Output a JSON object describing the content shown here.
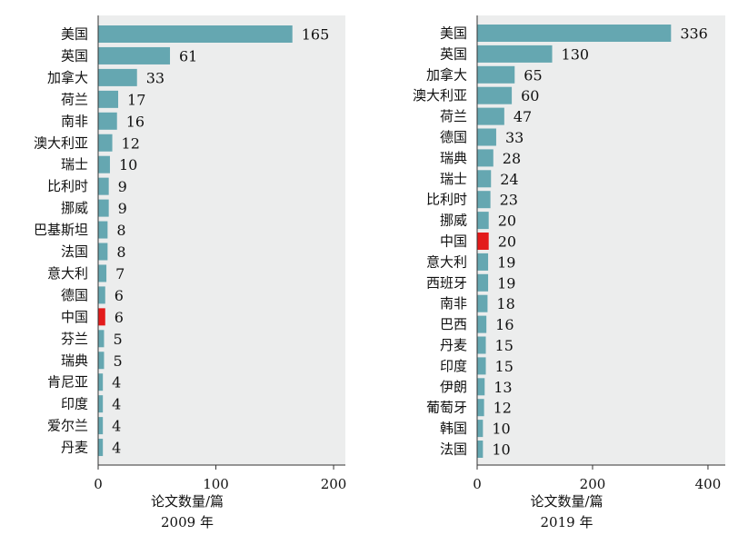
{
  "chart_data": [
    {
      "type": "bar",
      "orientation": "horizontal",
      "categories": [
        "美国",
        "英国",
        "加拿大",
        "荷兰",
        "南非",
        "澳大利亚",
        "瑞士",
        "比利时",
        "挪威",
        "巴基斯坦",
        "法国",
        "意大利",
        "德国",
        "中国",
        "芬兰",
        "瑞典",
        "肯尼亚",
        "印度",
        "爱尔兰",
        "丹麦"
      ],
      "values": [
        165,
        61,
        33,
        17,
        16,
        12,
        10,
        9,
        9,
        8,
        8,
        7,
        6,
        6,
        5,
        5,
        4,
        4,
        4,
        4
      ],
      "highlight": "中国",
      "xlabel": "论文数量/篇",
      "caption": "2009 年",
      "xlim": [
        0,
        210
      ],
      "xticks": [
        0,
        100,
        200
      ],
      "grid": false
    },
    {
      "type": "bar",
      "orientation": "horizontal",
      "categories": [
        "美国",
        "英国",
        "加拿大",
        "澳大利亚",
        "荷兰",
        "德国",
        "瑞典",
        "瑞士",
        "比利时",
        "挪威",
        "中国",
        "意大利",
        "西班牙",
        "南非",
        "巴西",
        "丹麦",
        "印度",
        "伊朗",
        "葡萄牙",
        "韩国",
        "法国"
      ],
      "values": [
        336,
        130,
        65,
        60,
        47,
        33,
        28,
        24,
        23,
        20,
        20,
        19,
        19,
        18,
        16,
        15,
        15,
        13,
        12,
        10,
        10
      ],
      "highlight": "中国",
      "xlabel": "论文数量/篇",
      "caption": "2019 年",
      "xlim": [
        0,
        430
      ],
      "xticks": [
        0,
        200,
        400
      ],
      "grid": false
    }
  ],
  "colors": {
    "bar": "#65A7B1",
    "highlight": "#E31B1B",
    "plot_bg": "#ECEDED",
    "axis": "#333333"
  }
}
